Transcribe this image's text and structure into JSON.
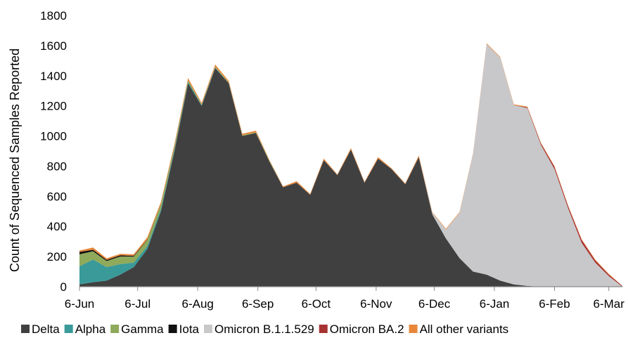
{
  "chart_data": {
    "type": "area",
    "stacked": true,
    "title": "",
    "xlabel": "",
    "ylabel": "Count of Sequenced Samples Reported",
    "ylim": [
      0,
      1800
    ],
    "yticks": [
      0,
      200,
      400,
      600,
      800,
      1000,
      1200,
      1400,
      1600,
      1800
    ],
    "grid": false,
    "legend_position": "bottom",
    "x_tick_labels": [
      "6-Jun",
      "6-Jul",
      "6-Aug",
      "6-Sep",
      "6-Oct",
      "6-Nov",
      "6-Dec",
      "6-Jan",
      "6-Feb",
      "6-Mar"
    ],
    "x": [
      "2021-06-06",
      "2021-06-13",
      "2021-06-20",
      "2021-06-27",
      "2021-07-04",
      "2021-07-11",
      "2021-07-18",
      "2021-07-25",
      "2021-08-01",
      "2021-08-08",
      "2021-08-15",
      "2021-08-22",
      "2021-08-29",
      "2021-09-05",
      "2021-09-12",
      "2021-09-19",
      "2021-09-26",
      "2021-10-03",
      "2021-10-10",
      "2021-10-17",
      "2021-10-24",
      "2021-10-31",
      "2021-11-07",
      "2021-11-14",
      "2021-11-21",
      "2021-11-28",
      "2021-12-05",
      "2021-12-12",
      "2021-12-19",
      "2021-12-26",
      "2022-01-02",
      "2022-01-09",
      "2022-01-16",
      "2022-01-23",
      "2022-01-30",
      "2022-02-06",
      "2022-02-13",
      "2022-02-20",
      "2022-02-27",
      "2022-03-06",
      "2022-03-13"
    ],
    "series": [
      {
        "name": "Delta",
        "color": "#404040",
        "values": [
          15,
          30,
          40,
          80,
          130,
          250,
          500,
          900,
          1350,
          1200,
          1450,
          1350,
          1000,
          1020,
          830,
          660,
          690,
          610,
          840,
          740,
          910,
          690,
          850,
          780,
          680,
          860,
          480,
          320,
          190,
          100,
          80,
          40,
          15,
          5,
          0,
          0,
          0,
          0,
          0,
          0,
          0
        ]
      },
      {
        "name": "Alpha",
        "color": "#3a9a9a",
        "values": [
          120,
          150,
          90,
          70,
          30,
          20,
          15,
          10,
          10,
          5,
          5,
          0,
          0,
          0,
          0,
          0,
          0,
          0,
          0,
          0,
          0,
          0,
          0,
          0,
          0,
          0,
          0,
          0,
          0,
          0,
          0,
          0,
          0,
          0,
          0,
          0,
          0,
          0,
          0,
          0,
          0
        ]
      },
      {
        "name": "Gamma",
        "color": "#8faa5a",
        "values": [
          80,
          55,
          40,
          50,
          40,
          40,
          30,
          20,
          10,
          5,
          5,
          5,
          5,
          5,
          5,
          0,
          0,
          0,
          0,
          0,
          0,
          0,
          0,
          0,
          0,
          0,
          0,
          0,
          0,
          0,
          0,
          0,
          0,
          0,
          0,
          0,
          0,
          0,
          0,
          0,
          0
        ]
      },
      {
        "name": "Iota",
        "color": "#111111",
        "values": [
          15,
          10,
          8,
          8,
          5,
          3,
          2,
          2,
          0,
          0,
          0,
          0,
          0,
          0,
          0,
          0,
          0,
          0,
          0,
          0,
          0,
          0,
          0,
          0,
          0,
          0,
          0,
          0,
          0,
          0,
          0,
          0,
          0,
          0,
          0,
          0,
          0,
          0,
          0,
          0,
          0
        ]
      },
      {
        "name": "Omicron B.1.1.529",
        "color": "#c8c8ca",
        "values": [
          0,
          0,
          0,
          0,
          0,
          0,
          0,
          0,
          0,
          0,
          0,
          0,
          0,
          0,
          0,
          0,
          0,
          0,
          0,
          0,
          0,
          0,
          0,
          0,
          0,
          0,
          10,
          60,
          300,
          780,
          1530,
          1480,
          1190,
          1180,
          940,
          780,
          520,
          290,
          160,
          70,
          0
        ]
      },
      {
        "name": "Omicron BA.2",
        "color": "#a83232",
        "values": [
          0,
          0,
          0,
          0,
          0,
          0,
          0,
          0,
          0,
          0,
          0,
          0,
          0,
          0,
          0,
          0,
          0,
          0,
          0,
          0,
          0,
          0,
          0,
          0,
          0,
          0,
          0,
          0,
          0,
          0,
          0,
          0,
          0,
          5,
          10,
          15,
          15,
          20,
          15,
          10,
          5
        ]
      },
      {
        "name": "All other variants",
        "color": "#e8873a",
        "values": [
          10,
          15,
          10,
          10,
          10,
          15,
          15,
          15,
          15,
          10,
          15,
          10,
          10,
          10,
          5,
          5,
          10,
          5,
          10,
          5,
          10,
          5,
          10,
          5,
          5,
          10,
          5,
          5,
          5,
          5,
          5,
          5,
          5,
          5,
          5,
          5,
          5,
          5,
          5,
          5,
          0
        ]
      }
    ]
  }
}
